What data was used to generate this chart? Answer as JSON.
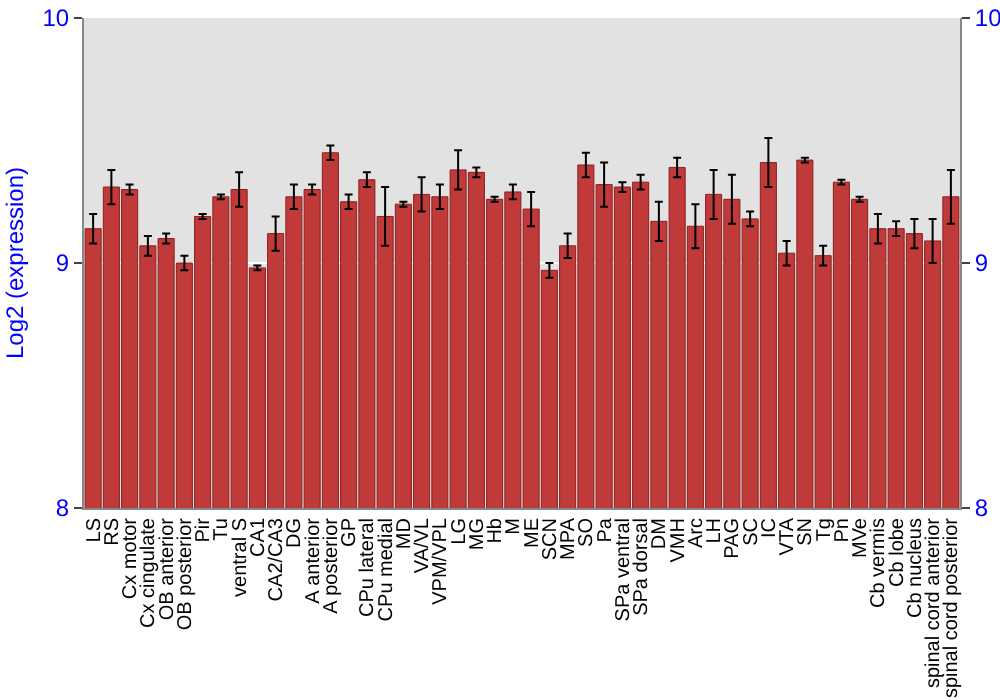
{
  "chart_data": {
    "type": "bar",
    "ylabel": "Log2 (expression)",
    "categories": [
      "LS",
      "RS",
      "Cx motor",
      "Cx cingulate",
      "OB anterior",
      "OB posterior",
      "Pir",
      "Tu",
      "ventral S",
      "CA1",
      "CA2/CA3",
      "DG",
      "A anterior",
      "A posterior",
      "GP",
      "CPu lateral",
      "CPu medial",
      "MD",
      "VA/VL",
      "VPM/VPL",
      "LG",
      "MG",
      "Hb",
      "M",
      "ME",
      "SCN",
      "MPA",
      "SO",
      "Pa",
      "SPa ventral",
      "SPa dorsal",
      "DM",
      "VMH",
      "Arc",
      "LH",
      "PAG",
      "SC",
      "IC",
      "VTA",
      "SN",
      "Tg",
      "Pn",
      "MVe",
      "Cb vermis",
      "Cb lobe",
      "Cb nucleus",
      "spinal cord anterior",
      "spinal cord posterior"
    ],
    "values": [
      9.14,
      9.31,
      9.3,
      9.07,
      9.1,
      9.0,
      9.19,
      9.27,
      9.3,
      8.98,
      9.12,
      9.27,
      9.3,
      9.45,
      9.25,
      9.34,
      9.19,
      9.24,
      9.28,
      9.27,
      9.38,
      9.37,
      9.26,
      9.29,
      9.22,
      8.97,
      9.07,
      9.4,
      9.32,
      9.31,
      9.33,
      9.17,
      9.39,
      9.15,
      9.28,
      9.26,
      9.18,
      9.41,
      9.04,
      9.42,
      9.03,
      9.33,
      9.26,
      9.14,
      9.14,
      9.12,
      9.09,
      9.27
    ],
    "errors": [
      0.06,
      0.07,
      0.02,
      0.04,
      0.02,
      0.03,
      0.01,
      0.01,
      0.07,
      0.01,
      0.07,
      0.05,
      0.02,
      0.03,
      0.03,
      0.03,
      0.12,
      0.01,
      0.07,
      0.05,
      0.08,
      0.02,
      0.01,
      0.03,
      0.07,
      0.03,
      0.05,
      0.05,
      0.09,
      0.02,
      0.03,
      0.08,
      0.04,
      0.09,
      0.1,
      0.1,
      0.03,
      0.1,
      0.05,
      0.01,
      0.04,
      0.01,
      0.01,
      0.06,
      0.03,
      0.06,
      0.09,
      0.11
    ],
    "color": "#c03a3a",
    "ylim": [
      8,
      10
    ],
    "yticks": [
      8,
      9,
      10
    ],
    "y2lim": [
      8,
      10
    ],
    "y2ticks": [
      8,
      9,
      10
    ],
    "grid": "y"
  }
}
